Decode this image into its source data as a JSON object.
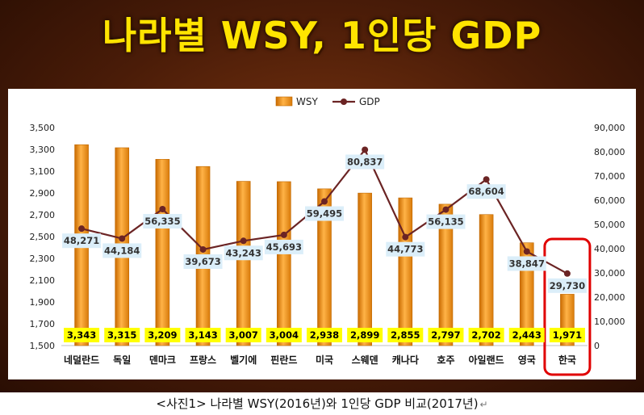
{
  "title": "나라별 WSY, 1인당 GDP",
  "caption": "<사진1> 나라별 WSY(2016년)와 1인당 GDP 비교(2017년)",
  "caption_mark": "↵",
  "colors": {
    "bar": "#f39a1e",
    "line": "#6b2424",
    "highlight": "#e00000",
    "label_bg": "#dbeef9",
    "value_box": "#ffff00"
  },
  "chart_data": {
    "type": "bar",
    "categories": [
      "네덜란드",
      "독일",
      "덴마크",
      "프랑스",
      "벨기에",
      "핀란드",
      "미국",
      "스웨덴",
      "캐나다",
      "호주",
      "아일랜드",
      "영국",
      "한국"
    ],
    "series": [
      {
        "name": "WSY",
        "type": "bar",
        "axis": "left",
        "values": [
          3343,
          3315,
          3209,
          3143,
          3007,
          3004,
          2938,
          2899,
          2855,
          2797,
          2702,
          2443,
          1971
        ],
        "labels": [
          "3,343",
          "3,315",
          "3,209",
          "3,143",
          "3,007",
          "3,004",
          "2,938",
          "2,899",
          "2,855",
          "2,797",
          "2,702",
          "2,443",
          "1,971"
        ]
      },
      {
        "name": "GDP",
        "type": "line",
        "axis": "right",
        "values": [
          48271,
          44184,
          56335,
          39673,
          43243,
          45693,
          59495,
          80837,
          44773,
          56135,
          68604,
          38847,
          29730
        ],
        "labels": [
          "48,271",
          "44,184",
          "56,335",
          "39,673",
          "43,243",
          "45,693",
          "59,495",
          "80,837",
          "44,773",
          "56,135",
          "68,604",
          "38,847",
          "29,730"
        ]
      }
    ],
    "y_left": {
      "min": 1500,
      "max": 3500,
      "ticks": [
        "1,500",
        "1,700",
        "1,900",
        "2,100",
        "2,300",
        "2,500",
        "2,700",
        "2,900",
        "3,100",
        "3,300",
        "3,500"
      ]
    },
    "y_right": {
      "min": 0,
      "max": 90000,
      "ticks": [
        "0",
        "10,000",
        "20,000",
        "30,000",
        "40,000",
        "50,000",
        "60,000",
        "70,000",
        "80,000",
        "90,000"
      ]
    },
    "legend_position": "top-center",
    "highlighted_category": "한국",
    "grid": false
  }
}
